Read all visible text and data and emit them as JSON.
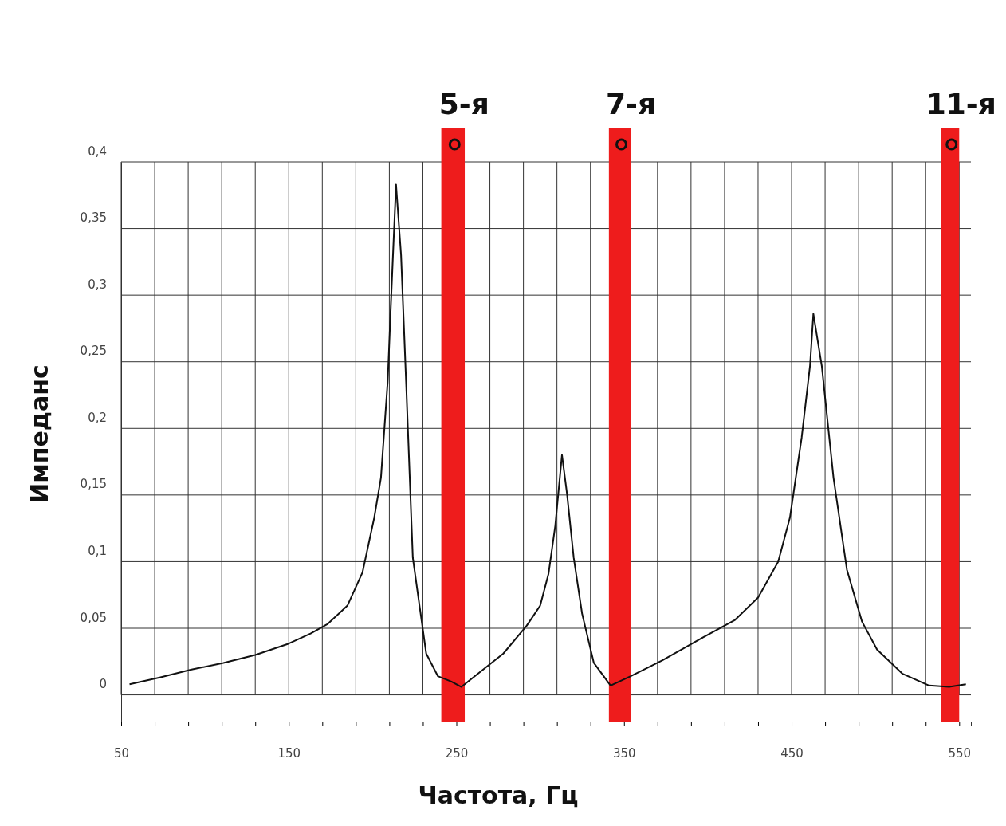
{
  "chart_data": {
    "type": "line",
    "xlabel": "Частота, Гц",
    "ylabel": "Импеданс",
    "x": [
      55,
      73,
      92,
      111,
      130,
      149,
      163,
      173,
      185,
      194,
      201,
      205,
      209,
      212,
      214,
      217,
      220,
      224,
      228,
      232,
      239,
      247,
      253,
      263,
      278,
      292,
      300,
      305,
      309,
      313,
      316,
      320,
      325,
      332,
      342,
      354,
      373,
      397,
      416,
      430,
      442,
      449,
      456,
      461,
      463,
      468,
      475,
      483,
      492,
      501,
      516,
      532,
      544,
      554
    ],
    "series": [
      {
        "color": "#111111",
        "values": [
          0.008,
          0.013,
          0.019,
          0.024,
          0.03,
          0.038,
          0.046,
          0.053,
          0.067,
          0.092,
          0.133,
          0.163,
          0.235,
          0.325,
          0.383,
          0.33,
          0.235,
          0.103,
          0.067,
          0.031,
          0.014,
          0.01,
          0.006,
          0.016,
          0.031,
          0.052,
          0.067,
          0.091,
          0.127,
          0.18,
          0.151,
          0.103,
          0.061,
          0.024,
          0.007,
          0.014,
          0.026,
          0.043,
          0.056,
          0.073,
          0.1,
          0.133,
          0.193,
          0.247,
          0.286,
          0.247,
          0.163,
          0.094,
          0.055,
          0.034,
          0.016,
          0.007,
          0.006,
          0.008
        ]
      }
    ],
    "xlim": [
      50,
      557
    ],
    "ylim": [
      -0.02,
      0.4
    ],
    "xticks": [
      50,
      {
        "value": 70,
        "label": null
      },
      {
        "value": 90,
        "label": null
      },
      {
        "value": 110,
        "label": null
      },
      {
        "value": 130,
        "label": null
      },
      150,
      {
        "value": 170,
        "label": null
      },
      {
        "value": 190,
        "label": null
      },
      {
        "value": 210,
        "label": null
      },
      {
        "value": 230,
        "label": null
      },
      250,
      {
        "value": 270,
        "label": null
      },
      {
        "value": 290,
        "label": null
      },
      {
        "value": 310,
        "label": null
      },
      {
        "value": 330,
        "label": null
      },
      350,
      {
        "value": 370,
        "label": null
      },
      {
        "value": 390,
        "label": null
      },
      {
        "value": 410,
        "label": null
      },
      {
        "value": 430,
        "label": null
      },
      450,
      {
        "value": 470,
        "label": null
      },
      {
        "value": 490,
        "label": null
      },
      {
        "value": 510,
        "label": null
      },
      {
        "value": 530,
        "label": null
      },
      550
    ],
    "yticks": [
      {
        "value": 0,
        "label": "0"
      },
      {
        "value": 0.05,
        "label": "0,05"
      },
      {
        "value": 0.1,
        "label": "0,1"
      },
      {
        "value": 0.15,
        "label": "0,15"
      },
      {
        "value": 0.2,
        "label": "0,2"
      },
      {
        "value": 0.25,
        "label": "0,25"
      },
      {
        "value": 0.3,
        "label": "0,3"
      },
      {
        "value": 0.35,
        "label": "0,35"
      },
      {
        "value": 0.4,
        "label": "0,4"
      }
    ],
    "grid": true,
    "marker": "none",
    "line_style": "solid",
    "bands": [
      {
        "axis": "x",
        "from": 241,
        "to": 255,
        "label": "5-я",
        "color": "#ee1c1c"
      },
      {
        "axis": "x",
        "from": 341,
        "to": 354,
        "label": "7-я",
        "color": "#ee1c1c"
      },
      {
        "axis": "x",
        "from": 539,
        "to": 550,
        "label": "11-я",
        "color": "#ee1c1c"
      }
    ]
  }
}
